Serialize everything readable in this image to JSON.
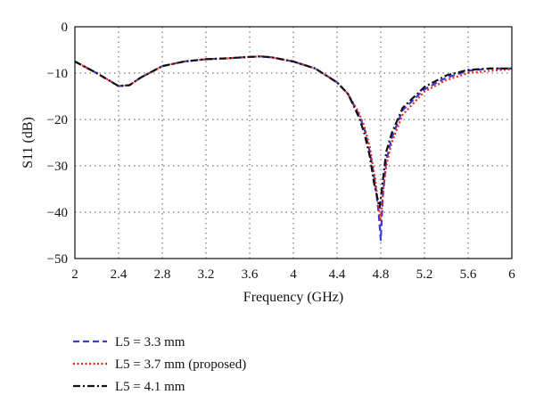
{
  "chart_data": {
    "type": "line",
    "xlabel": "Frequency (GHz)",
    "ylabel": "S11 (dB)",
    "xlim": [
      2,
      6
    ],
    "ylim": [
      -50,
      0
    ],
    "xticks": [
      2,
      2.4,
      2.8,
      3.2,
      3.6,
      4,
      4.4,
      4.8,
      5.2,
      5.6,
      6
    ],
    "xtick_labels": [
      "2",
      "2.4",
      "2.8",
      "3.2",
      "3.6",
      "4",
      "4.4",
      "4.8",
      "5.2",
      "5.6",
      "6"
    ],
    "yticks": [
      0,
      -10,
      -20,
      -30,
      -40,
      -50
    ],
    "ytick_labels": [
      "0",
      "−10",
      "−20",
      "−30",
      "−40",
      "−50"
    ],
    "grid": true,
    "legend_position": "below",
    "series": [
      {
        "name": "L5 = 3.3 mm",
        "color": "#3b3bd6",
        "dash": "dashed",
        "x": [
          2.0,
          2.2,
          2.4,
          2.5,
          2.6,
          2.8,
          3.0,
          3.2,
          3.4,
          3.6,
          3.7,
          3.8,
          4.0,
          4.2,
          4.4,
          4.5,
          4.6,
          4.65,
          4.7,
          4.75,
          4.78,
          4.8,
          4.82,
          4.85,
          4.9,
          5.0,
          5.2,
          5.4,
          5.6,
          5.8,
          6.0
        ],
        "y": [
          -7.5,
          -10.0,
          -12.8,
          -12.6,
          -11.0,
          -8.5,
          -7.5,
          -7.0,
          -6.8,
          -6.5,
          -6.4,
          -6.6,
          -7.5,
          -9.0,
          -12.0,
          -14.5,
          -19.0,
          -22.0,
          -27.0,
          -34.0,
          -40.0,
          -46.0,
          -36.0,
          -29.0,
          -24.0,
          -18.0,
          -13.5,
          -11.0,
          -9.5,
          -9.0,
          -9.0
        ]
      },
      {
        "name": "L5 = 3.7 mm (proposed)",
        "color": "#e8281e",
        "dash": "dotted",
        "x": [
          2.0,
          2.2,
          2.4,
          2.5,
          2.6,
          2.8,
          3.0,
          3.2,
          3.4,
          3.6,
          3.7,
          3.8,
          4.0,
          4.2,
          4.4,
          4.5,
          4.6,
          4.65,
          4.7,
          4.75,
          4.78,
          4.8,
          4.82,
          4.85,
          4.9,
          5.0,
          5.2,
          5.4,
          5.6,
          5.8,
          6.0
        ],
        "y": [
          -7.5,
          -10.0,
          -12.8,
          -12.6,
          -11.0,
          -8.5,
          -7.5,
          -7.0,
          -6.8,
          -6.5,
          -6.4,
          -6.6,
          -7.5,
          -9.0,
          -12.0,
          -14.5,
          -18.5,
          -21.5,
          -26.0,
          -33.0,
          -39.0,
          -42.0,
          -36.0,
          -30.0,
          -25.0,
          -19.0,
          -14.0,
          -11.5,
          -10.0,
          -9.5,
          -9.2
        ]
      },
      {
        "name": "L5 = 4.1 mm",
        "color": "#111111",
        "dash": "dashdot",
        "x": [
          2.0,
          2.2,
          2.4,
          2.5,
          2.6,
          2.8,
          3.0,
          3.2,
          3.4,
          3.6,
          3.7,
          3.8,
          4.0,
          4.2,
          4.4,
          4.5,
          4.6,
          4.65,
          4.7,
          4.74,
          4.77,
          4.79,
          4.82,
          4.85,
          4.9,
          5.0,
          5.2,
          5.4,
          5.6,
          5.8,
          6.0
        ],
        "y": [
          -7.5,
          -10.0,
          -12.8,
          -12.6,
          -11.0,
          -8.5,
          -7.5,
          -7.0,
          -6.8,
          -6.5,
          -6.4,
          -6.6,
          -7.5,
          -9.0,
          -12.0,
          -14.5,
          -19.5,
          -23.0,
          -28.0,
          -34.0,
          -37.0,
          -39.0,
          -33.0,
          -27.0,
          -23.0,
          -17.5,
          -13.0,
          -10.5,
          -9.3,
          -9.0,
          -9.0
        ]
      }
    ]
  }
}
